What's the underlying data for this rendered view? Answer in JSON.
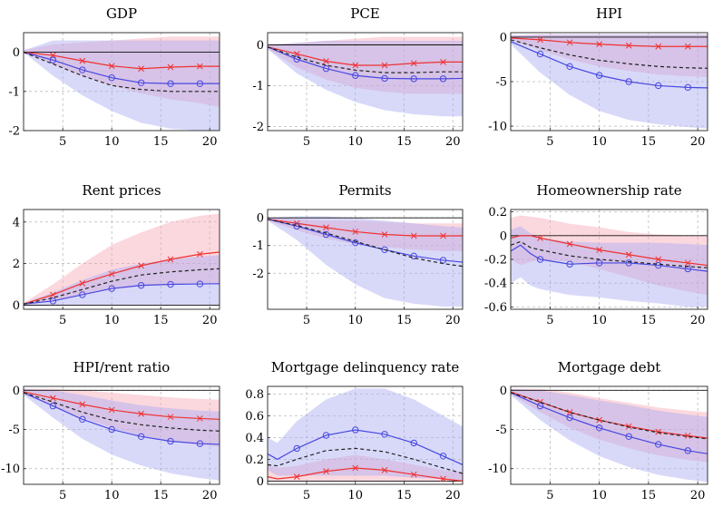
{
  "figure": {
    "background": "#ffffff"
  },
  "style": {
    "red": "#f03030",
    "blue": "#4848e0",
    "dash": "#222222",
    "red_band": "#f7a9b5",
    "blue_band": "#a9aaf2",
    "grid": "#bbbbbb"
  },
  "chart_data": [
    {
      "type": "line",
      "title": "GDP",
      "xlim": [
        1,
        21
      ],
      "ylim": [
        -2,
        0.5
      ],
      "xticks": [
        5,
        10,
        15,
        20
      ],
      "yticks": [
        0,
        -1,
        -2
      ],
      "grid": true,
      "x": [
        1,
        4,
        7,
        10,
        13,
        16,
        19,
        21
      ],
      "series": [
        {
          "style": "red-x",
          "values": [
            0,
            -0.08,
            -0.22,
            -0.35,
            -0.42,
            -0.38,
            -0.36,
            -0.36
          ]
        },
        {
          "style": "blue-o",
          "values": [
            0,
            -0.2,
            -0.45,
            -0.65,
            -0.78,
            -0.8,
            -0.8,
            -0.8
          ]
        },
        {
          "style": "black-dashed",
          "values": [
            0,
            -0.3,
            -0.6,
            -0.85,
            -0.95,
            -1.0,
            -1.0,
            -1.0
          ]
        }
      ],
      "bands": [
        {
          "style": "red",
          "lower": [
            0,
            -0.3,
            -0.6,
            -0.85,
            -1.05,
            -1.2,
            -1.3,
            -1.4
          ],
          "upper": [
            0.05,
            0.2,
            0.25,
            0.3,
            0.35,
            0.4,
            0.4,
            0.4
          ]
        },
        {
          "style": "blue",
          "lower": [
            0,
            -0.6,
            -1.1,
            -1.5,
            -1.8,
            -1.95,
            -2.0,
            -2.0
          ],
          "upper": [
            0.05,
            0.3,
            0.3,
            0.3,
            0.3,
            0.3,
            0.3,
            0.3
          ]
        }
      ]
    },
    {
      "type": "line",
      "title": "PCE",
      "xlim": [
        1,
        21
      ],
      "ylim": [
        -2.1,
        0.3
      ],
      "xticks": [
        5,
        10,
        15,
        20
      ],
      "yticks": [
        0,
        -1,
        -2
      ],
      "grid": true,
      "x": [
        1,
        4,
        7,
        10,
        13,
        16,
        19,
        21
      ],
      "series": [
        {
          "style": "red-x",
          "values": [
            -0.05,
            -0.22,
            -0.4,
            -0.5,
            -0.5,
            -0.45,
            -0.42,
            -0.42
          ]
        },
        {
          "style": "blue-o",
          "values": [
            -0.05,
            -0.35,
            -0.58,
            -0.75,
            -0.82,
            -0.83,
            -0.83,
            -0.82
          ]
        },
        {
          "style": "black-dashed",
          "values": [
            -0.05,
            -0.3,
            -0.5,
            -0.62,
            -0.68,
            -0.68,
            -0.66,
            -0.66
          ]
        }
      ],
      "bands": [
        {
          "style": "red",
          "lower": [
            -0.1,
            -0.55,
            -0.85,
            -1.05,
            -1.15,
            -1.2,
            -1.2,
            -1.2
          ],
          "upper": [
            0.0,
            0.05,
            0.1,
            0.15,
            0.2,
            0.2,
            0.2,
            0.2
          ]
        },
        {
          "style": "blue",
          "lower": [
            -0.1,
            -0.7,
            -1.1,
            -1.4,
            -1.6,
            -1.7,
            -1.75,
            -1.75
          ],
          "upper": [
            0.0,
            0.05,
            0.1,
            0.1,
            0.1,
            0.1,
            0.1,
            0.1
          ]
        }
      ]
    },
    {
      "type": "line",
      "title": "HPI",
      "xlim": [
        1,
        21
      ],
      "ylim": [
        -10.5,
        0.5
      ],
      "xticks": [
        5,
        10,
        15,
        20
      ],
      "yticks": [
        0,
        -5,
        -10
      ],
      "grid": true,
      "x": [
        1,
        4,
        7,
        10,
        13,
        16,
        19,
        21
      ],
      "series": [
        {
          "style": "red-x",
          "values": [
            -0.1,
            -0.3,
            -0.6,
            -0.8,
            -0.95,
            -1.05,
            -1.05,
            -1.05
          ]
        },
        {
          "style": "blue-o",
          "values": [
            -0.5,
            -1.9,
            -3.3,
            -4.3,
            -5.0,
            -5.45,
            -5.65,
            -5.7
          ]
        },
        {
          "style": "black-dashed",
          "values": [
            -0.3,
            -1.2,
            -2.0,
            -2.6,
            -3.0,
            -3.3,
            -3.45,
            -3.5
          ]
        }
      ],
      "bands": [
        {
          "style": "red",
          "lower": [
            -0.3,
            -1.5,
            -2.5,
            -3.3,
            -3.8,
            -4.2,
            -4.4,
            -4.5
          ],
          "upper": [
            0.2,
            0.3,
            0.3,
            0.3,
            0.3,
            0.3,
            0.3,
            0.3
          ]
        },
        {
          "style": "blue",
          "lower": [
            -0.8,
            -4.0,
            -6.5,
            -8.3,
            -9.3,
            -9.8,
            -10.1,
            -10.3
          ],
          "upper": [
            0.2,
            0.3,
            0.3,
            0.3,
            0.3,
            0.3,
            0.3,
            0.3
          ]
        }
      ]
    },
    {
      "type": "line",
      "title": "Rent prices",
      "xlim": [
        1,
        21
      ],
      "ylim": [
        -0.2,
        4.6
      ],
      "xticks": [
        5,
        10,
        15,
        20
      ],
      "yticks": [
        4,
        2,
        0
      ],
      "grid": true,
      "x": [
        1,
        4,
        7,
        10,
        13,
        16,
        19,
        21
      ],
      "series": [
        {
          "style": "red-x",
          "values": [
            0.05,
            0.5,
            1.05,
            1.5,
            1.9,
            2.2,
            2.45,
            2.55
          ]
        },
        {
          "style": "blue-o",
          "values": [
            0.05,
            0.2,
            0.5,
            0.8,
            0.95,
            1.0,
            1.02,
            1.03
          ]
        },
        {
          "style": "black-dashed",
          "values": [
            0.05,
            0.35,
            0.75,
            1.15,
            1.45,
            1.6,
            1.7,
            1.75
          ]
        }
      ],
      "bands": [
        {
          "style": "red",
          "lower": [
            0,
            0.2,
            0.5,
            0.75,
            0.9,
            1.0,
            1.05,
            1.05
          ],
          "upper": [
            0.1,
            1.0,
            2.0,
            2.9,
            3.5,
            4.0,
            4.3,
            4.4
          ]
        },
        {
          "style": "blue",
          "lower": [
            -0.05,
            0.0,
            0.0,
            0.0,
            0.0,
            0.0,
            0.0,
            0.0
          ],
          "upper": [
            0.1,
            0.6,
            1.2,
            1.7,
            2.0,
            2.2,
            2.35,
            2.4
          ]
        }
      ]
    },
    {
      "type": "line",
      "title": "Permits",
      "xlim": [
        1,
        21
      ],
      "ylim": [
        -3.3,
        0.3
      ],
      "xticks": [
        5,
        10,
        15,
        20
      ],
      "yticks": [
        0,
        -1,
        -2
      ],
      "grid": true,
      "x": [
        1,
        4,
        7,
        10,
        13,
        16,
        19,
        21
      ],
      "series": [
        {
          "style": "red-x",
          "values": [
            -0.05,
            -0.2,
            -0.35,
            -0.5,
            -0.6,
            -0.65,
            -0.65,
            -0.65
          ]
        },
        {
          "style": "blue-o",
          "values": [
            -0.05,
            -0.3,
            -0.6,
            -0.9,
            -1.15,
            -1.38,
            -1.53,
            -1.6
          ]
        },
        {
          "style": "black-dashed",
          "values": [
            -0.05,
            -0.28,
            -0.55,
            -0.85,
            -1.15,
            -1.45,
            -1.65,
            -1.75
          ]
        }
      ],
      "bands": [
        {
          "style": "red",
          "lower": [
            -0.1,
            -0.45,
            -0.75,
            -0.95,
            -1.05,
            -1.15,
            -1.2,
            -1.2
          ],
          "upper": [
            0.0,
            -0.05,
            -0.1,
            -0.1,
            -0.15,
            -0.2,
            -0.2,
            -0.2
          ]
        },
        {
          "style": "blue",
          "lower": [
            -0.1,
            -0.8,
            -1.7,
            -2.4,
            -2.9,
            -3.1,
            -3.2,
            -3.2
          ],
          "upper": [
            0.0,
            0.05,
            0.05,
            0.0,
            -0.1,
            -0.2,
            -0.3,
            -0.35
          ]
        }
      ]
    },
    {
      "type": "line",
      "title": "Homeownership rate",
      "xlim": [
        1,
        21
      ],
      "ylim": [
        -0.62,
        0.22
      ],
      "xticks": [
        5,
        10,
        15,
        20
      ],
      "yticks": [
        0.2,
        0,
        -0.2,
        -0.4,
        -0.6
      ],
      "grid": true,
      "x": [
        1,
        2,
        3,
        4,
        7,
        10,
        13,
        16,
        19,
        21
      ],
      "series": [
        {
          "style": "red-x",
          "values": [
            -0.02,
            0.0,
            0.0,
            -0.02,
            -0.07,
            -0.12,
            -0.16,
            -0.2,
            -0.23,
            -0.25
          ]
        },
        {
          "style": "blue-o",
          "values": [
            -0.13,
            -0.08,
            -0.15,
            -0.2,
            -0.24,
            -0.23,
            -0.23,
            -0.25,
            -0.28,
            -0.3
          ]
        },
        {
          "style": "black-dashed",
          "values": [
            -0.08,
            -0.05,
            -0.1,
            -0.12,
            -0.17,
            -0.2,
            -0.22,
            -0.24,
            -0.26,
            -0.27
          ]
        }
      ],
      "bands": [
        {
          "style": "red",
          "lower": [
            -0.2,
            -0.25,
            -0.22,
            -0.2,
            -0.22,
            -0.28,
            -0.35,
            -0.42,
            -0.47,
            -0.5
          ],
          "upper": [
            0.15,
            0.17,
            0.16,
            0.15,
            0.1,
            0.07,
            0.03,
            0.01,
            0.0,
            0.0
          ]
        },
        {
          "style": "blue",
          "lower": [
            -0.4,
            -0.35,
            -0.42,
            -0.45,
            -0.5,
            -0.52,
            -0.55,
            -0.57,
            -0.6,
            -0.6
          ],
          "upper": [
            0.05,
            0.08,
            0.02,
            -0.02,
            -0.05,
            -0.06,
            -0.06,
            -0.06,
            -0.07,
            -0.08
          ]
        }
      ]
    },
    {
      "type": "line",
      "title": "HPI/rent ratio",
      "xlim": [
        1,
        21
      ],
      "ylim": [
        -12,
        0.5
      ],
      "xticks": [
        5,
        10,
        15,
        20
      ],
      "yticks": [
        0,
        -5,
        -10
      ],
      "grid": true,
      "x": [
        1,
        4,
        7,
        10,
        13,
        16,
        19,
        21
      ],
      "series": [
        {
          "style": "red-x",
          "values": [
            -0.2,
            -1.0,
            -1.8,
            -2.5,
            -3.0,
            -3.4,
            -3.6,
            -3.7
          ]
        },
        {
          "style": "blue-o",
          "values": [
            -0.3,
            -2.0,
            -3.7,
            -5.0,
            -5.9,
            -6.5,
            -6.8,
            -6.9
          ]
        },
        {
          "style": "black-dashed",
          "values": [
            -0.3,
            -1.5,
            -2.8,
            -3.8,
            -4.4,
            -4.8,
            -5.1,
            -5.2
          ]
        }
      ],
      "bands": [
        {
          "style": "red",
          "lower": [
            -0.5,
            -2.0,
            -3.5,
            -4.8,
            -5.8,
            -6.5,
            -7.0,
            -7.2
          ],
          "upper": [
            0.2,
            0.2,
            0.0,
            -0.3,
            -0.6,
            -0.9,
            -1.1,
            -1.2
          ]
        },
        {
          "style": "blue",
          "lower": [
            -0.6,
            -3.5,
            -6.2,
            -8.2,
            -9.6,
            -10.6,
            -11.2,
            -11.5
          ],
          "upper": [
            0.2,
            0.0,
            -0.6,
            -1.3,
            -1.9,
            -2.3,
            -2.6,
            -2.7
          ]
        }
      ]
    },
    {
      "type": "line",
      "title": "Mortgage delinquency rate",
      "xlim": [
        1,
        21
      ],
      "ylim": [
        -0.03,
        0.87
      ],
      "xticks": [
        5,
        10,
        15,
        20
      ],
      "yticks": [
        0.8,
        0.6,
        0.4,
        0.2,
        0
      ],
      "grid": true,
      "x": [
        1,
        2,
        4,
        7,
        10,
        13,
        16,
        19,
        21
      ],
      "series": [
        {
          "style": "red-x",
          "values": [
            0.04,
            0.02,
            0.04,
            0.09,
            0.12,
            0.1,
            0.06,
            0.02,
            0.0
          ]
        },
        {
          "style": "blue-o",
          "values": [
            0.25,
            0.2,
            0.3,
            0.42,
            0.47,
            0.43,
            0.35,
            0.23,
            0.15
          ]
        },
        {
          "style": "black-dashed",
          "values": [
            0.15,
            0.14,
            0.2,
            0.28,
            0.3,
            0.27,
            0.2,
            0.12,
            0.07
          ]
        }
      ],
      "bands": [
        {
          "style": "red",
          "lower": [
            0.0,
            0.0,
            0.0,
            0.0,
            0.0,
            0.0,
            0.0,
            0.0,
            0.0
          ],
          "upper": [
            0.15,
            0.12,
            0.14,
            0.2,
            0.24,
            0.2,
            0.15,
            0.1,
            0.08
          ]
        },
        {
          "style": "blue",
          "lower": [
            0.1,
            0.05,
            0.05,
            0.05,
            0.05,
            0.05,
            0.03,
            0.02,
            0.0
          ],
          "upper": [
            0.4,
            0.35,
            0.55,
            0.75,
            0.85,
            0.85,
            0.75,
            0.6,
            0.5
          ]
        }
      ]
    },
    {
      "type": "line",
      "title": "Mortgage debt",
      "xlim": [
        1,
        21
      ],
      "ylim": [
        -12,
        0.5
      ],
      "xticks": [
        5,
        10,
        15,
        20
      ],
      "yticks": [
        0,
        -5,
        -10
      ],
      "grid": true,
      "x": [
        1,
        4,
        7,
        10,
        13,
        16,
        19,
        21
      ],
      "series": [
        {
          "style": "red-x",
          "values": [
            -0.2,
            -1.5,
            -2.8,
            -3.8,
            -4.6,
            -5.3,
            -5.8,
            -6.1
          ]
        },
        {
          "style": "blue-o",
          "values": [
            -0.3,
            -2.0,
            -3.5,
            -4.8,
            -5.9,
            -6.9,
            -7.7,
            -8.1
          ]
        },
        {
          "style": "black-dashed",
          "values": [
            -0.3,
            -1.5,
            -2.8,
            -3.8,
            -4.7,
            -5.4,
            -5.9,
            -6.2
          ]
        }
      ],
      "bands": [
        {
          "style": "red",
          "lower": [
            -0.5,
            -2.8,
            -4.8,
            -6.3,
            -7.4,
            -8.3,
            -8.9,
            -9.2
          ],
          "upper": [
            0.2,
            0.2,
            -0.3,
            -1.0,
            -1.6,
            -2.2,
            -2.6,
            -2.8
          ]
        },
        {
          "style": "blue",
          "lower": [
            -0.6,
            -3.8,
            -6.4,
            -8.4,
            -9.8,
            -10.8,
            -11.4,
            -11.7
          ],
          "upper": [
            0.2,
            0.0,
            -0.6,
            -1.3,
            -1.9,
            -2.6,
            -3.1,
            -3.4
          ]
        }
      ]
    }
  ]
}
